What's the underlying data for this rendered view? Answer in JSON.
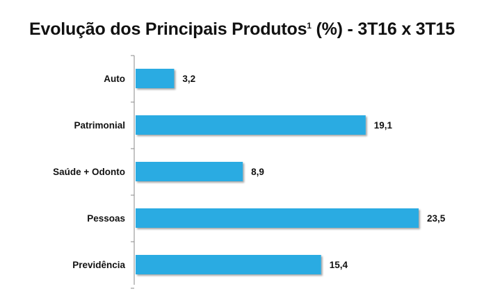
{
  "title": {
    "text": "Evolução dos Principais Produtos",
    "superscript": "1",
    "suffix": " (%) - 3T16 x 3T15"
  },
  "chart_data": {
    "type": "bar",
    "orientation": "horizontal",
    "title": "Evolução dos Principais Produtos¹ (%) - 3T16 x 3T15",
    "categories": [
      "Auto",
      "Patrimonial",
      "Saúde + Odonto",
      "Pessoas",
      "Previdência"
    ],
    "values": [
      3.2,
      19.1,
      8.9,
      23.5,
      15.4
    ],
    "value_labels": [
      "3,2",
      "19,1",
      "8,9",
      "23,5",
      "15,4"
    ],
    "xlim": [
      0,
      23.5
    ],
    "grid": false,
    "legend": "none",
    "bar_color": "#29abe2"
  }
}
